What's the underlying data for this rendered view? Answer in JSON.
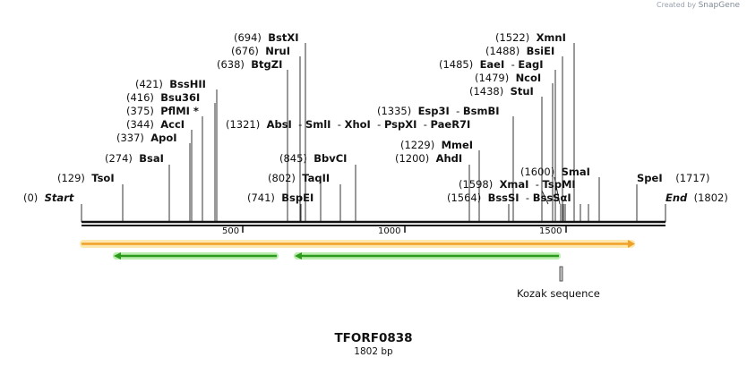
{
  "watermark": {
    "prefix": "Created by",
    "brand": "SnapGene"
  },
  "sequence": {
    "name": "TFORF0838",
    "length_label": "1802 bp",
    "length": 1802
  },
  "ends": {
    "start": {
      "pos": "(0)",
      "label": "Start"
    },
    "end": {
      "pos": "(1802)",
      "label": "End"
    }
  },
  "ruler": {
    "ticks": [
      "500",
      "1000",
      "1500"
    ]
  },
  "sites": [
    {
      "pos": "(694)",
      "name": "BstXI"
    },
    {
      "pos": "(676)",
      "name": "NruI"
    },
    {
      "pos": "(638)",
      "name": "BtgZI"
    },
    {
      "pos": "(421)",
      "name": "BssHII"
    },
    {
      "pos": "(416)",
      "name": "Bsu36I"
    },
    {
      "pos": "(375)",
      "name": "PflMI *"
    },
    {
      "pos": "(344)",
      "name": "AccI"
    },
    {
      "pos": "(337)",
      "name": "ApoI"
    },
    {
      "pos": "(274)",
      "name": "BsaI"
    },
    {
      "pos": "(129)",
      "name": "TsoI"
    },
    {
      "pos": "(1321)",
      "name": "AbsI",
      "extra": [
        "SmlI",
        "XhoI",
        "PspXI",
        "PaeR7I"
      ]
    },
    {
      "pos": "(845)",
      "name": "BbvCI"
    },
    {
      "pos": "(802)",
      "name": "TaqII"
    },
    {
      "pos": "(741)",
      "name": "BspEI"
    },
    {
      "pos": "(1522)",
      "name": "XmnI"
    },
    {
      "pos": "(1488)",
      "name": "BsiEI"
    },
    {
      "pos": "(1485)",
      "name": "EaeI",
      "extra": [
        "EagI"
      ]
    },
    {
      "pos": "(1479)",
      "name": "NcoI"
    },
    {
      "pos": "(1438)",
      "name": "StuI"
    },
    {
      "pos": "(1335)",
      "name": "Esp3I",
      "extra": [
        "BsmBI"
      ]
    },
    {
      "pos": "(1229)",
      "name": "MmeI"
    },
    {
      "pos": "(1200)",
      "name": "AhdI"
    },
    {
      "pos": "(1600)",
      "name": "SmaI"
    },
    {
      "pos": "(1598)",
      "name": "XmaI",
      "extra": [
        "TspMI"
      ]
    },
    {
      "pos": "(1564)",
      "name": "BssSI",
      "extra": [
        "BssSαI"
      ]
    },
    {
      "pos": "(1717)",
      "name": "SpeI"
    }
  ],
  "feature_label": "Kozak sequence",
  "colors": {
    "orf": "#f0a028",
    "orf_glow": "#fde9b0",
    "primer": "#2c9a1c",
    "primer_glow": "#b9ecad"
  }
}
